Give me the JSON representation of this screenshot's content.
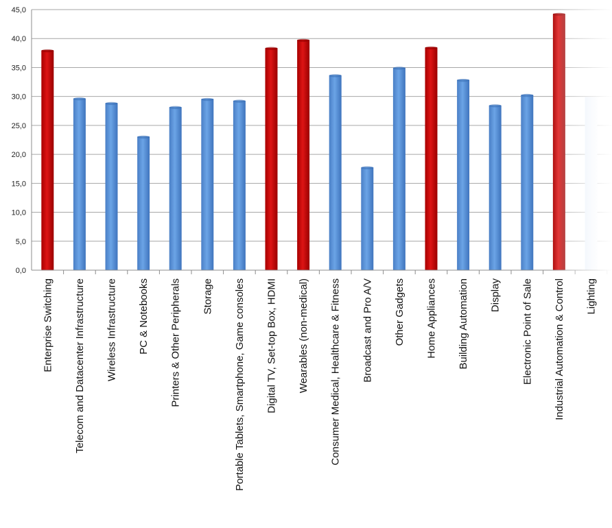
{
  "chart_data": {
    "type": "bar",
    "title": "",
    "xlabel": "",
    "ylabel": "",
    "ylim": [
      0,
      45
    ],
    "yticks": [
      "0,0",
      "5,0",
      "10,0",
      "15,0",
      "20,0",
      "25,0",
      "30,0",
      "35,0",
      "40,0",
      "45,0"
    ],
    "grid": true,
    "categories": [
      "Enterprise Switching",
      "Telecom and Datacenter Infrastructure",
      "Wireless Infrastructure",
      "PC & Notebooks",
      "Printers & Other Peripherals",
      "Storage",
      "Portable Tablets, Smartphone, Game consoles",
      "Digital TV, Set-top Box, HDMI",
      "Wearables (non-medical)",
      "Consumer Medical, Healthcare & Fitness",
      "Broadcast and Pro A/V",
      "Other Gadgets",
      "Home Appliances",
      "Building Automation",
      "Display",
      "Electronic Point of Sale",
      "Industrial Automation & Control",
      "Lighting"
    ],
    "values": [
      38.0,
      29.7,
      28.9,
      23.1,
      28.2,
      29.6,
      29.3,
      38.4,
      39.8,
      33.7,
      17.8,
      35.0,
      38.5,
      32.9,
      28.5,
      30.3,
      44.3,
      29.9
    ],
    "highlighted": [
      true,
      false,
      false,
      false,
      false,
      false,
      false,
      true,
      true,
      false,
      false,
      false,
      true,
      false,
      false,
      false,
      true,
      false
    ],
    "faded": [
      false,
      false,
      false,
      false,
      false,
      false,
      false,
      false,
      false,
      false,
      false,
      false,
      false,
      false,
      false,
      false,
      false,
      true
    ],
    "colors": {
      "bar": "#5b95d8",
      "bar_dark": "#3a6fb5",
      "highlight": "#c40a0a",
      "highlight_dark": "#8e0000",
      "grid": "#a6a6a6",
      "axis": "#8c8c8c",
      "faded_bar": "#dce9f8",
      "faded_label": "#d4d4d4"
    }
  }
}
